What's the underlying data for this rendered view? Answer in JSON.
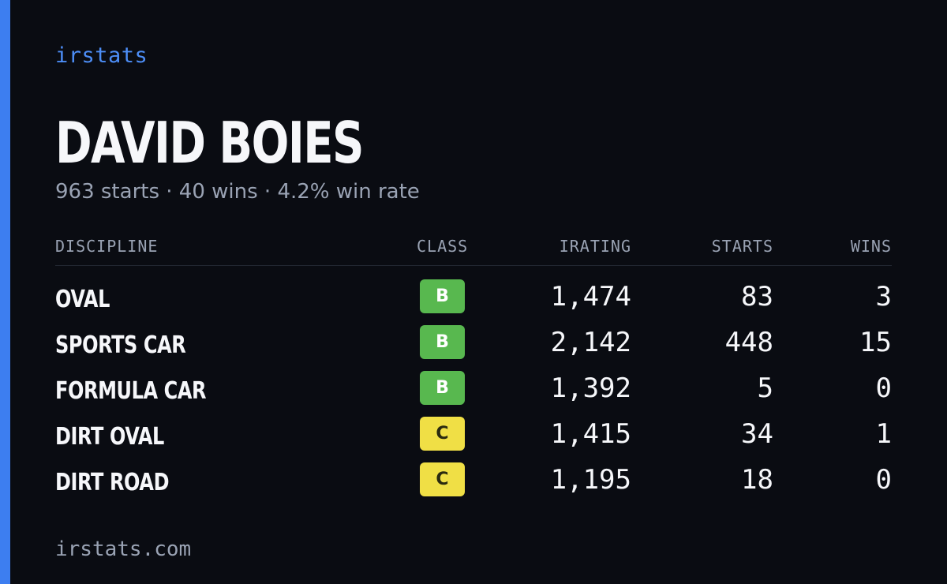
{
  "brand": "irstats",
  "driver": {
    "name": "DAVID BOIES",
    "summary": "963 starts · 40 wins · 4.2% win rate"
  },
  "table": {
    "headers": {
      "discipline": "DISCIPLINE",
      "class": "CLASS",
      "irating": "IRATING",
      "starts": "STARTS",
      "wins": "WINS"
    },
    "rows": [
      {
        "discipline": "OVAL",
        "class": "B",
        "irating": "1,474",
        "starts": "83",
        "wins": "3"
      },
      {
        "discipline": "SPORTS CAR",
        "class": "B",
        "irating": "2,142",
        "starts": "448",
        "wins": "15"
      },
      {
        "discipline": "FORMULA CAR",
        "class": "B",
        "irating": "1,392",
        "starts": "5",
        "wins": "0"
      },
      {
        "discipline": "DIRT OVAL",
        "class": "C",
        "irating": "1,415",
        "starts": "34",
        "wins": "1"
      },
      {
        "discipline": "DIRT ROAD",
        "class": "C",
        "irating": "1,195",
        "starts": "18",
        "wins": "0"
      }
    ]
  },
  "colors": {
    "accent": "#3d7ef0",
    "class_b": "#58b84f",
    "class_c": "#f0df45",
    "background": "#0a0c12"
  },
  "footer": "irstats.com"
}
